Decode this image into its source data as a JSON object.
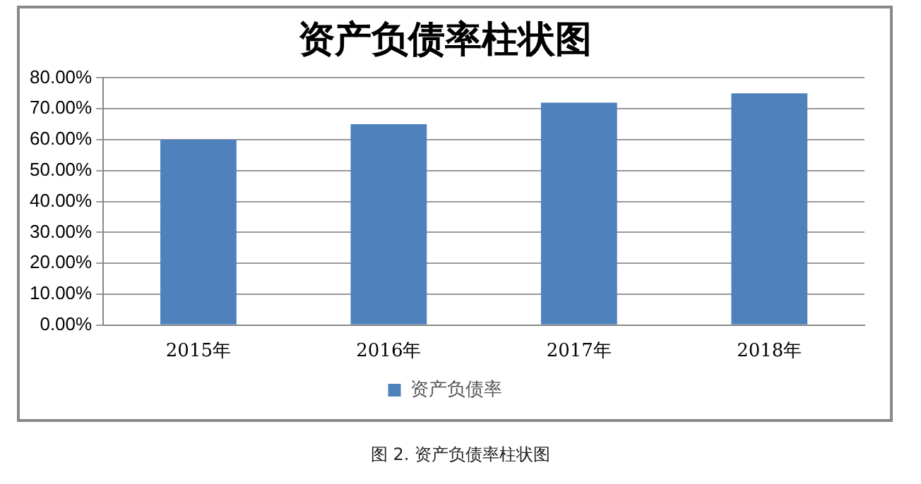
{
  "chart_data": {
    "type": "bar",
    "title": "资产负债率柱状图",
    "categories": [
      "2015年",
      "2016年",
      "2017年",
      "2018年"
    ],
    "series": [
      {
        "name": "资产负债率",
        "color": "#4f81bd",
        "values": [
          60,
          65,
          72,
          75
        ]
      }
    ],
    "ylim": [
      0,
      80
    ],
    "yticks": [
      {
        "value": 0,
        "label": "0.00%"
      },
      {
        "value": 10,
        "label": "10.00%"
      },
      {
        "value": 20,
        "label": "20.00%"
      },
      {
        "value": 30,
        "label": "30.00%"
      },
      {
        "value": 40,
        "label": "40.00%"
      },
      {
        "value": 50,
        "label": "50.00%"
      },
      {
        "value": 60,
        "label": "60.00%"
      },
      {
        "value": 70,
        "label": "70.00%"
      },
      {
        "value": 80,
        "label": "80.00%"
      }
    ],
    "grid": "y",
    "legend": "bottom",
    "annotations": [
      "图 2.  资产负债率柱状图"
    ]
  }
}
